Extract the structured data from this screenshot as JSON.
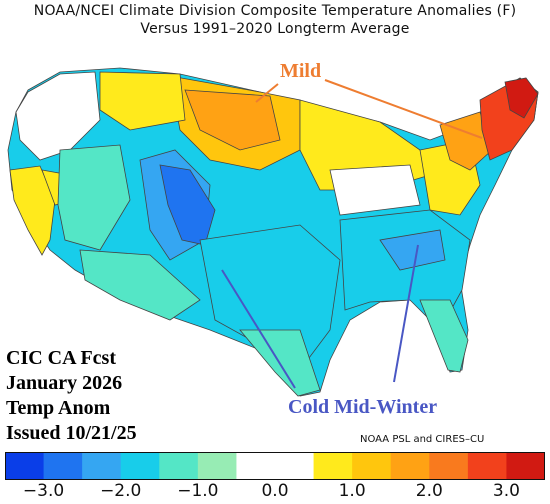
{
  "title": {
    "line1": "NOAA/NCEI Climate Division Composite Temperature Anomalies (F)",
    "line2": "Versus 1991–2020 Longterm Average"
  },
  "forecast_label": {
    "line1": "CIC CA Fcst",
    "line2": "January 2026",
    "line3": "Temp Anom",
    "line4": "Issued 10/21/25"
  },
  "annotations": {
    "mild": "Mild",
    "cold": "Cold Mid-Winter",
    "mild_color": "#ee7d31",
    "cold_color": "#4957c4"
  },
  "credit": "NOAA PSL and CIRES–CU",
  "colorbar": {
    "colors": [
      "#0a3ee8",
      "#1f74f0",
      "#35a6f2",
      "#18cdea",
      "#54e6c6",
      "#97ecb4",
      "#ffffff",
      "#ffffff",
      "#ffea1c",
      "#ffc60d",
      "#ffa214",
      "#f97a1e",
      "#f2411c",
      "#d11a12"
    ],
    "tick_labels": [
      "−3.0",
      "−2.0",
      "−1.0",
      "0.0",
      "1.0",
      "2.0",
      "3.0"
    ]
  },
  "region_colors": {
    "strong_cold": "#1f74f0",
    "cold": "#35a6f2",
    "cool": "#18cdea",
    "slightly_cool": "#54e6c6",
    "neutral": "#ffffff",
    "slightly_warm": "#ffea1c",
    "warm": "#ffc60d",
    "warmer": "#ffa214",
    "hot": "#f2411c",
    "very_hot": "#d11a12"
  }
}
